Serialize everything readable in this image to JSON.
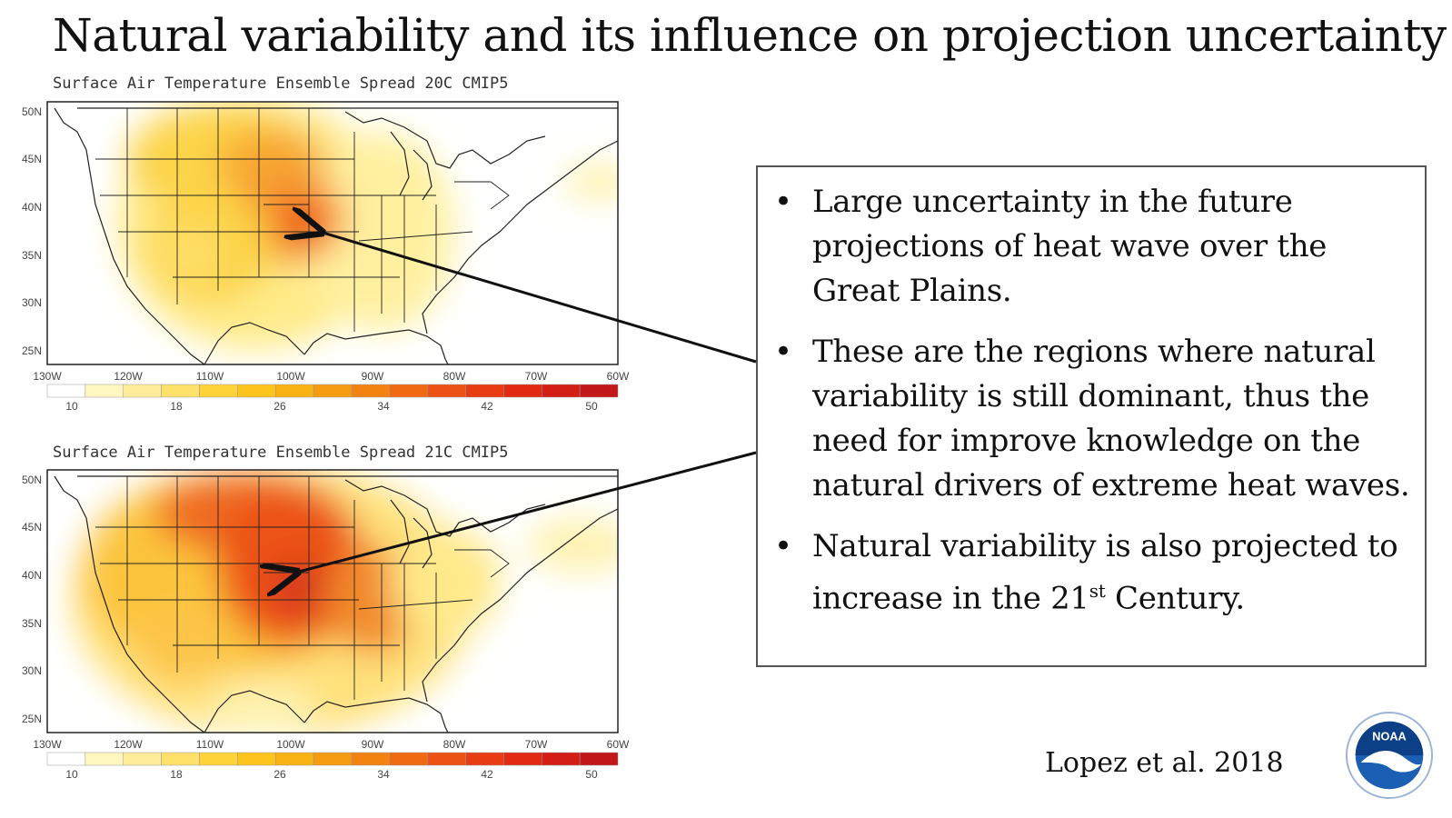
{
  "slide": {
    "title": "Natural variability and its influence on projection uncertainty",
    "citation": "Lopez et al. 2018",
    "logo_text": "NOAA",
    "bullets": [
      {
        "text": "Large uncertainty in the future projections of heat wave over the Great Plains."
      },
      {
        "text": "These are the regions where natural variability is still dominant, thus the need for improve knowledge on the natural drivers of extreme heat waves."
      },
      {
        "text_before": "Natural variability is also projected to increase in the 21",
        "sup": "st",
        "text_after": " Century."
      }
    ]
  },
  "maps": [
    {
      "title": "Surface Air Temperature Ensemble Spread 20C CMIP5"
    },
    {
      "title": "Surface Air Temperature Ensemble Spread 21C CMIP5"
    }
  ],
  "axes": {
    "lat_labels": [
      "50N",
      "45N",
      "40N",
      "35N",
      "30N",
      "25N"
    ],
    "lon_labels": [
      "130W",
      "120W",
      "110W",
      "100W",
      "90W",
      "80W",
      "70W",
      "60W"
    ]
  },
  "colorbar": {
    "labels": [
      "10",
      "18",
      "26",
      "34",
      "42",
      "50"
    ],
    "colors": [
      "#ffffff",
      "#fff6c0",
      "#ffec9a",
      "#ffe06a",
      "#ffd23a",
      "#fcc41c",
      "#f9b213",
      "#f59b12",
      "#f28312",
      "#ef6a12",
      "#ec5213",
      "#e83c13",
      "#e02a14",
      "#d31e16",
      "#c31819"
    ]
  },
  "colors": {
    "frame": "#222222",
    "arrow": "#111111",
    "noaa_blue": "#1b5fb4"
  }
}
